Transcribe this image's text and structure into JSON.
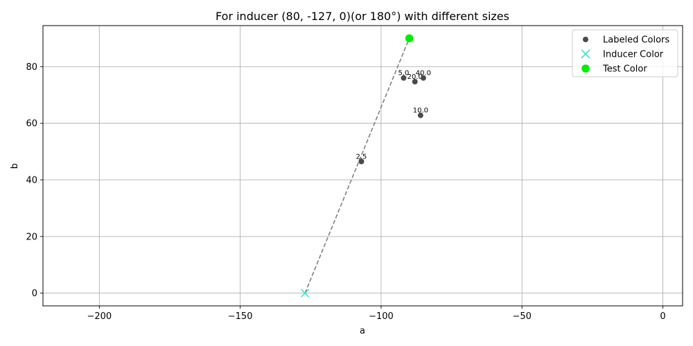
{
  "chart_data": {
    "type": "scatter",
    "title": "For inducer (80, -127, 0)(or 180°) with different sizes",
    "xlabel": "a",
    "ylabel": "b",
    "xlim": [
      -220,
      7
    ],
    "ylim": [
      -4.5,
      94.5
    ],
    "xticks": [
      -200,
      -150,
      -100,
      -50,
      0
    ],
    "xtick_labels": [
      "−200",
      "−150",
      "−100",
      "−50",
      "0"
    ],
    "yticks": [
      0,
      20,
      40,
      60,
      80
    ],
    "ytick_labels": [
      "0",
      "20",
      "40",
      "60",
      "80"
    ],
    "grid": true,
    "legend_position": "top-right",
    "series": [
      {
        "name": "Labeled Colors",
        "marker": "circle",
        "color": "#4a4a4a",
        "points": [
          {
            "x": -107,
            "y": 46.5,
            "label": "2.5"
          },
          {
            "x": -92,
            "y": 76,
            "label": "5.0"
          },
          {
            "x": -86,
            "y": 62.8,
            "label": "10.0"
          },
          {
            "x": -88,
            "y": 74.7,
            "label": "20.0"
          },
          {
            "x": -85,
            "y": 76,
            "label": "40.0"
          }
        ]
      },
      {
        "name": "Inducer Color",
        "marker": "x",
        "color": "#40e0d0",
        "points": [
          {
            "x": -127,
            "y": 0
          }
        ]
      },
      {
        "name": "Test Color",
        "marker": "circle",
        "color": "#00ee00",
        "points": [
          {
            "x": -90,
            "y": 90
          }
        ]
      }
    ],
    "connector_line": {
      "from": [
        -127,
        0
      ],
      "to": [
        -90,
        90
      ],
      "style": "dashed",
      "color": "#808080"
    }
  }
}
